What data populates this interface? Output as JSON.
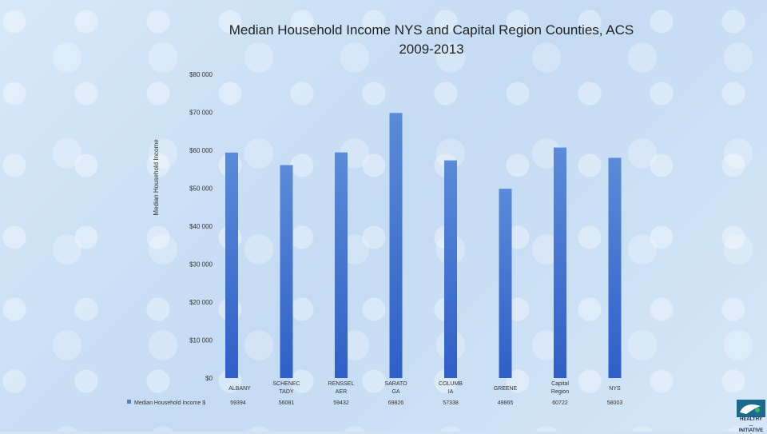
{
  "chart_data": {
    "type": "bar",
    "title_lines": [
      "Median Household Income NYS and Capital Region Counties, ACS",
      "2009-2013"
    ],
    "ylabel": "Median Household Income",
    "xlabel": "",
    "ylim": [
      0,
      80000
    ],
    "yticks": [
      0,
      10000,
      20000,
      30000,
      40000,
      50000,
      60000,
      70000,
      80000
    ],
    "ytick_labels": [
      "$0",
      "$10 000",
      "$20 000",
      "$30 000",
      "$40 000",
      "$50 000",
      "$60 000",
      "$70 000",
      "$80 000"
    ],
    "categories": [
      [
        "ALBANY"
      ],
      [
        "SCHENEC",
        "TADY"
      ],
      [
        "RENSSEL",
        "AER"
      ],
      [
        "SARATO",
        "GA"
      ],
      [
        "COLUMB",
        "IA"
      ],
      [
        "GREENE"
      ],
      [
        "Capital",
        "Region"
      ],
      [
        "NYS"
      ]
    ],
    "series": [
      {
        "name": "Median Household Income $",
        "values": [
          59394,
          56081,
          59432,
          69826,
          57338,
          49865,
          60722,
          58003
        ],
        "value_labels": [
          "59394",
          "56081",
          "59432",
          "69826",
          "57338",
          "49865",
          "60722",
          "58003"
        ]
      }
    ],
    "grid": false,
    "legend": "bottom-left-table",
    "colors": {
      "bar_top": "#5a8bd8",
      "bar_bottom": "#2f5fc7",
      "legend_marker": "#4f7fd0"
    }
  },
  "logo": {
    "lines": [
      "HEALTHY",
      "...",
      "INITIATIVE"
    ]
  }
}
